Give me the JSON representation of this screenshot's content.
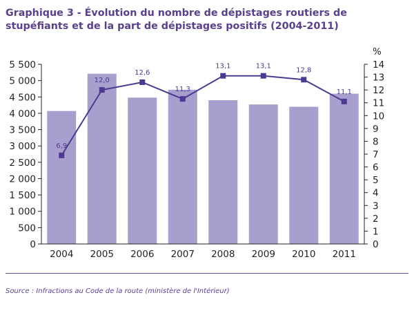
{
  "chart_data": {
    "type": "bar",
    "title": "Graphique 3 - Évolution du nombre de dépistages routiers de stupéfiants et de la part de dépistages positifs (2004-2011)",
    "categories": [
      "2004",
      "2005",
      "2006",
      "2007",
      "2008",
      "2009",
      "2010",
      "2011"
    ],
    "series": [
      {
        "type": "bar",
        "axis": "left",
        "values": [
          4070,
          5210,
          4480,
          4720,
          4400,
          4270,
          4200,
          4600
        ],
        "color": "#a99fce"
      },
      {
        "type": "line",
        "axis": "right",
        "values": [
          6.9,
          12.0,
          12.6,
          11.3,
          13.1,
          13.1,
          12.8,
          11.1
        ],
        "labels": [
          "6,9",
          "12,0",
          "12,6",
          "11,3",
          "13,1",
          "13,1",
          "12,8",
          "11,1"
        ],
        "color": "#4b3a8f"
      }
    ],
    "y_left": {
      "ylim": [
        0,
        5500
      ],
      "ticks": [
        0,
        500,
        1000,
        1500,
        2000,
        2500,
        3000,
        3500,
        4000,
        4500,
        5000,
        5500
      ],
      "tick_labels": [
        "0",
        "500",
        "1 000",
        "1 500",
        "2 000",
        "2 500",
        "3 000",
        "3 500",
        "4 000",
        "4 500",
        "5 000",
        "5 500"
      ]
    },
    "y_right": {
      "ylim": [
        0,
        14
      ],
      "ticks": [
        0,
        1,
        2,
        3,
        4,
        5,
        6,
        7,
        8,
        9,
        10,
        11,
        12,
        13,
        14
      ],
      "unit_label": "%"
    },
    "grid": false,
    "legend": "none"
  },
  "source": "Source : Infractions au Code de la route (ministère de l'Intérieur)",
  "colors": {
    "title": "#5b3f8f",
    "bar": "#a99fce",
    "line": "#4b3a8f",
    "axis": "#222222"
  }
}
